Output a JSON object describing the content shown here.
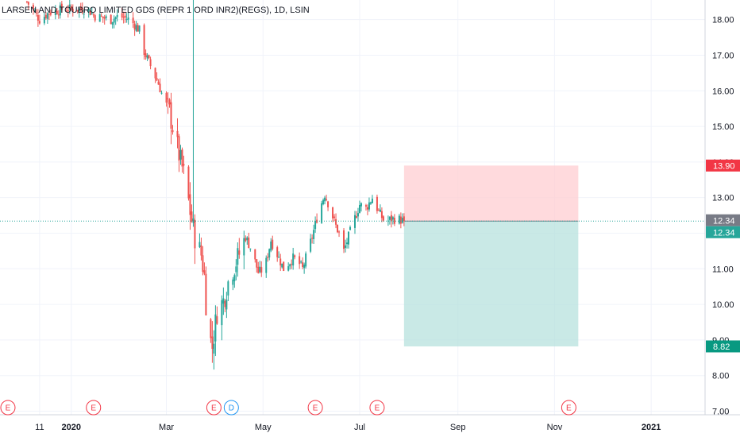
{
  "symbol_title": "LARSEN AND TOUBRO LIMITED GDS (REPR 1 ORD INR2)(REGS), 1D, LSIN",
  "colors": {
    "up": "#26a69a",
    "down": "#ef5350",
    "grid": "#f0f3fa",
    "axis_line": "#d1d4dc",
    "profit_zone": "#b2dfdb",
    "loss_zone": "#ffcdd2",
    "stop_badge": "#f23645",
    "target_badge": "#089981",
    "last_badge": "#787b86",
    "entry_badge": "#26a69a",
    "event_earnings": "#f23645",
    "event_dividend": "#2196f3"
  },
  "chart_data": {
    "type": "candlestick",
    "title": "LARSEN AND TOUBRO LIMITED GDS (REPR 1 ORD INR2)(REGS), 1D, LSIN",
    "x_ticks": [
      "11",
      "2020",
      "Mar",
      "May",
      "Jul",
      "Sep",
      "Nov",
      "2021"
    ],
    "x_tick_days": [
      -20,
      0,
      60,
      121,
      182,
      244,
      305,
      366
    ],
    "x_range_days": [
      -45,
      400
    ],
    "y_ticks": [
      "7.00",
      "8.00",
      "9.00",
      "10.00",
      "11.00",
      "12.00",
      "13.00",
      "14.00",
      "15.00",
      "16.00",
      "17.00",
      "18.00"
    ],
    "y_range": [
      6.9,
      18.55
    ],
    "grid": true,
    "price_labels": {
      "stop": "13.90",
      "last": "12.34",
      "entry": "12.34",
      "target": "8.82"
    },
    "position": {
      "type": "short",
      "entry": 12.34,
      "stop": 13.9,
      "target": 8.82,
      "start": "2020-07-29",
      "end": "2020-11-16"
    },
    "events": [
      {
        "type": "earnings",
        "label": "E",
        "day": -40
      },
      {
        "type": "earnings",
        "label": "E",
        "day": 14
      },
      {
        "type": "earnings",
        "label": "E",
        "day": 90
      },
      {
        "type": "dividend",
        "label": "D",
        "day": 101
      },
      {
        "type": "earnings",
        "label": "E",
        "day": 154
      },
      {
        "type": "earnings",
        "label": "E",
        "day": 193
      },
      {
        "type": "earnings",
        "label": "E",
        "day": 314
      }
    ],
    "candles_note": "daily OHLC, day 0 = 2020-01-01",
    "anchors": [
      [
        -28,
        18.5
      ],
      [
        -20,
        18.0
      ],
      [
        -14,
        18.2
      ],
      [
        -5,
        18.3
      ],
      [
        0,
        18.3
      ],
      [
        10,
        18.3
      ],
      [
        15,
        18.1
      ],
      [
        25,
        18.0
      ],
      [
        30,
        18.1
      ],
      [
        37,
        18.0
      ],
      [
        43,
        17.7
      ],
      [
        46,
        17.1
      ],
      [
        50,
        16.7
      ],
      [
        55,
        16.2
      ],
      [
        58,
        15.8
      ],
      [
        62,
        15.4
      ],
      [
        66,
        14.6
      ],
      [
        69,
        14.0
      ],
      [
        72,
        13.5
      ],
      [
        75,
        12.6
      ],
      [
        78,
        11.9
      ],
      [
        82,
        11.4
      ],
      [
        84,
        10.8
      ],
      [
        86,
        9.3
      ],
      [
        89,
        8.8
      ],
      [
        92,
        9.8
      ],
      [
        96,
        10.1
      ],
      [
        100,
        10.8
      ],
      [
        105,
        11.3
      ],
      [
        110,
        11.9
      ],
      [
        114,
        11.5
      ],
      [
        118,
        10.9
      ],
      [
        122,
        11.0
      ],
      [
        126,
        11.8
      ],
      [
        130,
        11.4
      ],
      [
        134,
        11.0
      ],
      [
        138,
        11.2
      ],
      [
        140,
        11.3
      ],
      [
        143,
        11.2
      ],
      [
        146,
        11.0
      ],
      [
        150,
        11.6
      ],
      [
        152,
        11.9
      ],
      [
        156,
        12.6
      ],
      [
        160,
        13.1
      ],
      [
        164,
        12.6
      ],
      [
        167,
        12.2
      ],
      [
        170,
        11.9
      ],
      [
        172,
        11.5
      ],
      [
        175,
        11.9
      ],
      [
        178,
        12.3
      ],
      [
        182,
        12.8
      ],
      [
        186,
        12.7
      ],
      [
        190,
        13.0
      ],
      [
        194,
        12.6
      ],
      [
        198,
        12.3
      ],
      [
        202,
        12.4
      ],
      [
        206,
        12.4
      ],
      [
        210,
        12.34
      ]
    ]
  }
}
